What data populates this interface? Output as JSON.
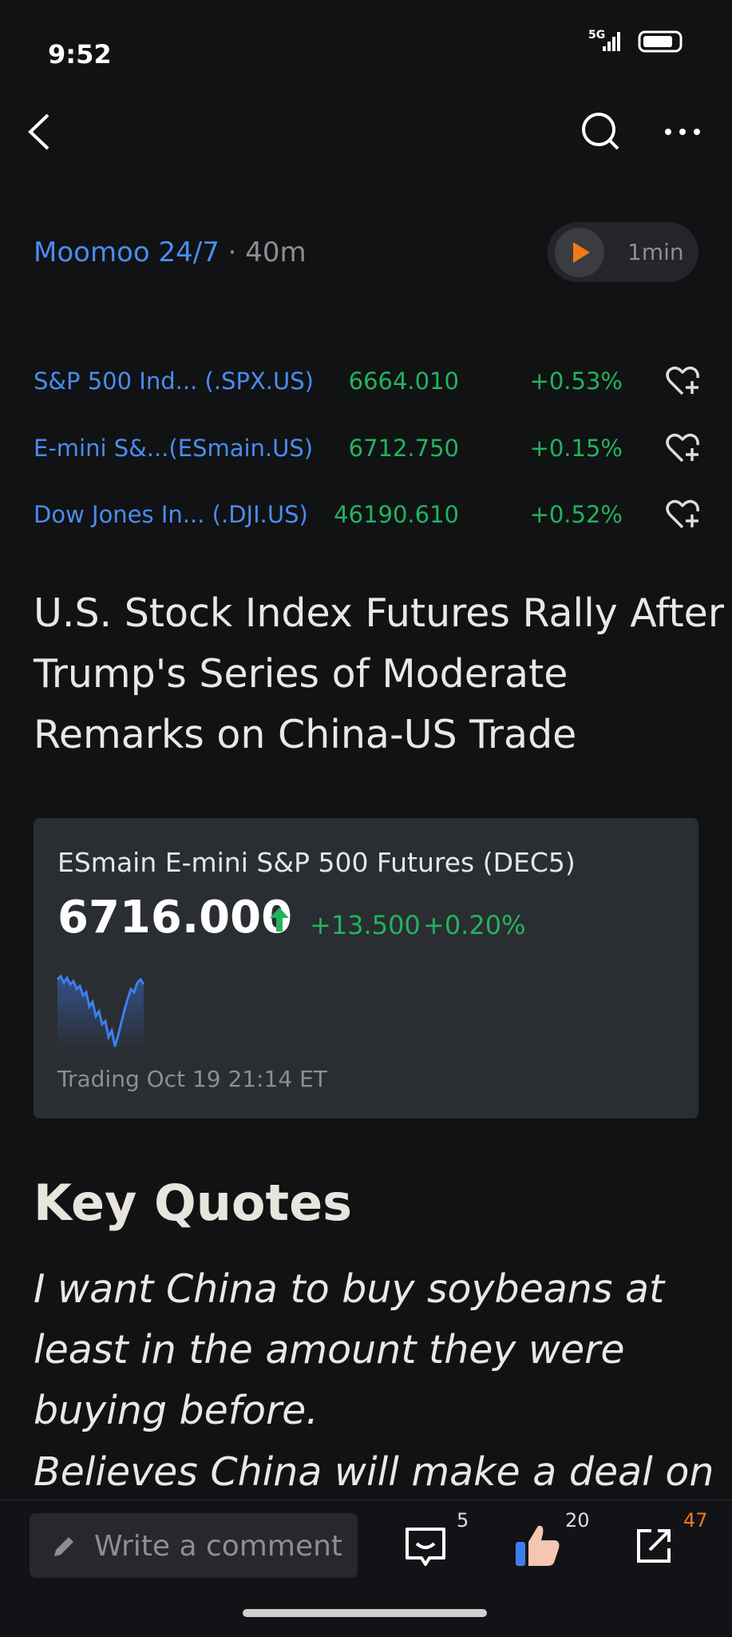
{
  "status_bar": {
    "time": "9:52",
    "network": "5G"
  },
  "header": {
    "source": "Moomoo 24/7",
    "separator": "·",
    "age": "40m",
    "audio_duration": "1min"
  },
  "tickers": [
    {
      "name": "S&P 500 Ind... (.SPX.US)",
      "price": "6664.010",
      "change": "+0.53%"
    },
    {
      "name": "E-mini S&...(ESmain.US)",
      "price": "6712.750",
      "change": "+0.15%"
    },
    {
      "name": "Dow Jones In... (.DJI.US)",
      "price": "46190.610",
      "change": "+0.52%"
    }
  ],
  "headline": [
    "U.S. Stock Index Futures Rally After",
    "Trump's Series of Moderate",
    "Remarks on China-US Trade"
  ],
  "quote_card": {
    "title": "ESmain E-mini S&P 500 Futures (DEC5)",
    "price": "6716.000",
    "change": "+13.500",
    "change_pct": "+0.20%",
    "status": "Trading",
    "time": "Oct 19 21:14 ET"
  },
  "section_title": "Key Quotes",
  "quotes": [
    "I want China to buy soybeans at",
    "least in the amount they were",
    "buying before.",
    "Believes China will make a deal on"
  ],
  "bottom_bar": {
    "placeholder": "Write a comment",
    "comments": 5,
    "likes": 20,
    "shares": 47
  }
}
